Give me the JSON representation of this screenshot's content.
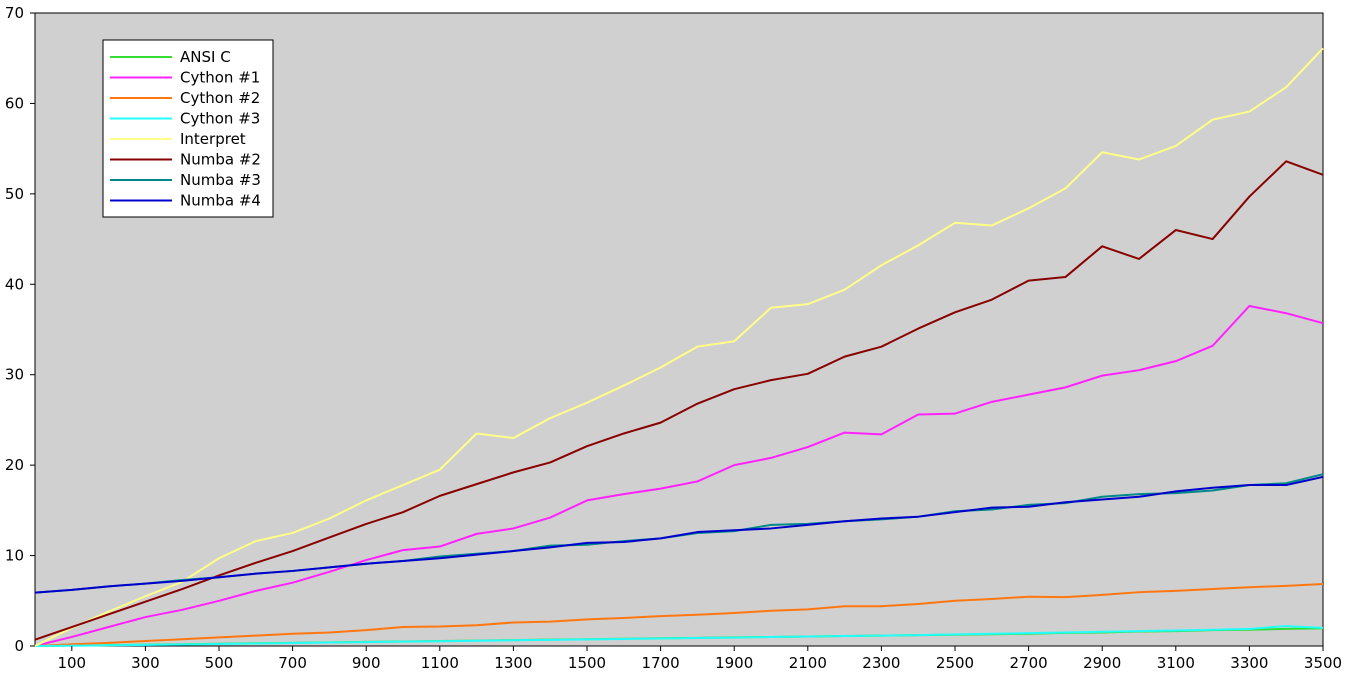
{
  "chart_data": {
    "type": "line",
    "title": "",
    "xlabel": "",
    "ylabel": "",
    "xlim": [
      0,
      3500
    ],
    "ylim": [
      0,
      70
    ],
    "grid": false,
    "background": "#d0d0d0",
    "legend_position": "top-left",
    "x_ticks": [
      100,
      300,
      500,
      700,
      900,
      1100,
      1300,
      1500,
      1700,
      1900,
      2100,
      2300,
      2500,
      2700,
      2900,
      3100,
      3300,
      3500
    ],
    "y_ticks": [
      0,
      10,
      20,
      30,
      40,
      50,
      60,
      70
    ],
    "x": [
      0,
      100,
      200,
      300,
      400,
      500,
      600,
      700,
      800,
      900,
      1000,
      1100,
      1200,
      1300,
      1400,
      1500,
      1600,
      1700,
      1800,
      1900,
      2000,
      2100,
      2200,
      2300,
      2400,
      2500,
      2600,
      2700,
      2800,
      2900,
      3000,
      3100,
      3200,
      3300,
      3400,
      3500
    ],
    "series": [
      {
        "name": "ANSI C",
        "color": "#33dd33",
        "values": [
          0,
          0.05,
          0.1,
          0.15,
          0.2,
          0.25,
          0.3,
          0.35,
          0.4,
          0.45,
          0.5,
          0.55,
          0.6,
          0.65,
          0.7,
          0.75,
          0.8,
          0.85,
          0.9,
          0.95,
          1.0,
          1.05,
          1.1,
          1.15,
          1.2,
          1.25,
          1.3,
          1.35,
          1.45,
          1.5,
          1.6,
          1.65,
          1.75,
          1.8,
          1.9,
          1.95
        ]
      },
      {
        "name": "Cython #1",
        "color": "#ff22ff",
        "values": [
          0,
          1.0,
          2.1,
          3.2,
          4.0,
          5.0,
          6.1,
          7.0,
          8.2,
          9.5,
          10.6,
          11.0,
          12.4,
          13.0,
          14.2,
          16.1,
          16.8,
          17.4,
          18.2,
          20.0,
          20.8,
          22.0,
          23.6,
          23.4,
          25.6,
          25.7,
          27.0,
          27.8,
          28.6,
          29.9,
          30.5,
          31.5,
          33.2,
          37.6,
          36.8,
          35.7
        ]
      },
      {
        "name": "Cython #2",
        "color": "#ff7711",
        "values": [
          0,
          0.2,
          0.35,
          0.55,
          0.75,
          0.95,
          1.15,
          1.35,
          1.5,
          1.75,
          2.1,
          2.15,
          2.3,
          2.6,
          2.7,
          2.95,
          3.1,
          3.3,
          3.45,
          3.65,
          3.9,
          4.05,
          4.4,
          4.4,
          4.65,
          5.0,
          5.2,
          5.45,
          5.4,
          5.65,
          5.95,
          6.1,
          6.3,
          6.5,
          6.65,
          6.85
        ]
      },
      {
        "name": "Cython #3",
        "color": "#22ffff",
        "values": [
          0,
          0.03,
          0.08,
          0.12,
          0.17,
          0.22,
          0.28,
          0.33,
          0.38,
          0.43,
          0.48,
          0.53,
          0.58,
          0.63,
          0.68,
          0.73,
          0.78,
          0.83,
          0.88,
          0.93,
          1.0,
          1.05,
          1.1,
          1.15,
          1.2,
          1.28,
          1.35,
          1.42,
          1.5,
          1.57,
          1.65,
          1.72,
          1.8,
          1.9,
          2.2,
          2.0
        ]
      },
      {
        "name": "Interpret",
        "color": "#ffff88",
        "values": [
          0,
          2.0,
          3.8,
          5.5,
          7.1,
          9.7,
          11.6,
          12.5,
          14.1,
          16.1,
          17.8,
          19.5,
          23.5,
          23.0,
          25.2,
          26.9,
          28.8,
          30.8,
          33.1,
          33.7,
          37.4,
          37.8,
          39.4,
          42.1,
          44.3,
          46.8,
          46.5,
          48.4,
          50.6,
          54.6,
          53.8,
          55.3,
          58.2,
          59.1,
          61.8,
          66.1
        ]
      },
      {
        "name": "Numba #2",
        "color": "#880000",
        "values": [
          0.7,
          2.1,
          3.5,
          4.9,
          6.3,
          7.8,
          9.2,
          10.5,
          12.0,
          13.5,
          14.8,
          16.6,
          17.9,
          19.2,
          20.3,
          22.1,
          23.5,
          24.7,
          26.8,
          28.4,
          29.4,
          30.1,
          32.0,
          33.1,
          35.1,
          36.9,
          38.3,
          40.4,
          40.8,
          44.2,
          42.8,
          46.0,
          45.0,
          49.7,
          53.6,
          52.1
        ]
      },
      {
        "name": "Numba #3",
        "color": "#008888",
        "values": [
          5.9,
          6.2,
          6.6,
          6.9,
          7.3,
          7.6,
          8.0,
          8.3,
          8.7,
          9.1,
          9.4,
          9.9,
          10.2,
          10.5,
          11.1,
          11.2,
          11.6,
          11.9,
          12.5,
          12.7,
          13.4,
          13.5,
          13.8,
          14.0,
          14.3,
          14.9,
          15.1,
          15.6,
          15.8,
          16.5,
          16.8,
          16.9,
          17.2,
          17.8,
          18.0,
          19.0
        ]
      },
      {
        "name": "Numba #4",
        "color": "#0000cc",
        "values": [
          5.9,
          6.2,
          6.6,
          6.9,
          7.2,
          7.6,
          8.0,
          8.3,
          8.7,
          9.1,
          9.4,
          9.7,
          10.1,
          10.5,
          10.9,
          11.4,
          11.5,
          11.9,
          12.6,
          12.8,
          13.0,
          13.4,
          13.8,
          14.1,
          14.3,
          14.8,
          15.3,
          15.4,
          15.9,
          16.2,
          16.5,
          17.1,
          17.5,
          17.8,
          17.8,
          18.7
        ]
      }
    ]
  }
}
